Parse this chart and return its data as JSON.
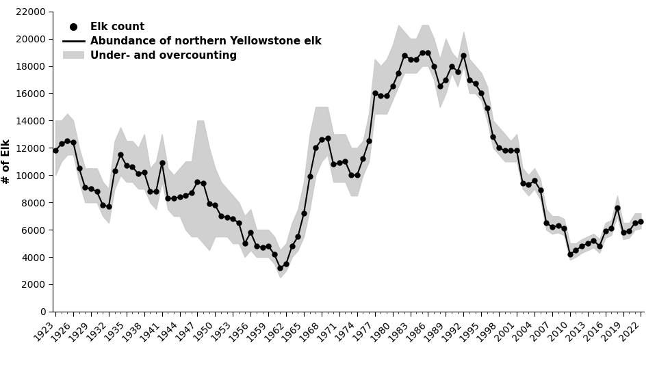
{
  "years": [
    1923,
    1924,
    1925,
    1926,
    1927,
    1928,
    1929,
    1930,
    1931,
    1932,
    1933,
    1934,
    1935,
    1936,
    1937,
    1938,
    1939,
    1940,
    1941,
    1942,
    1943,
    1944,
    1945,
    1946,
    1947,
    1948,
    1949,
    1950,
    1951,
    1952,
    1953,
    1954,
    1955,
    1956,
    1957,
    1958,
    1959,
    1960,
    1961,
    1962,
    1963,
    1964,
    1965,
    1966,
    1967,
    1968,
    1969,
    1970,
    1971,
    1972,
    1973,
    1974,
    1975,
    1976,
    1977,
    1978,
    1979,
    1980,
    1981,
    1982,
    1983,
    1984,
    1985,
    1986,
    1987,
    1988,
    1989,
    1990,
    1991,
    1992,
    1993,
    1994,
    1995,
    1996,
    1997,
    1998,
    1999,
    2000,
    2001,
    2002,
    2003,
    2004,
    2005,
    2006,
    2007,
    2008,
    2009,
    2010,
    2011,
    2012,
    2013,
    2014,
    2015,
    2016,
    2017,
    2018,
    2019,
    2020,
    2021,
    2022
  ],
  "values": [
    11800,
    12300,
    12500,
    12400,
    10500,
    9100,
    9000,
    8800,
    7800,
    7700,
    10300,
    11500,
    10700,
    10600,
    10100,
    10200,
    8800,
    8800,
    10900,
    8300,
    8300,
    8400,
    8500,
    8700,
    9500,
    9400,
    7900,
    7800,
    7000,
    6900,
    6800,
    6500,
    5000,
    5800,
    4800,
    4700,
    4800,
    4200,
    3200,
    3500,
    4800,
    5500,
    7200,
    9900,
    12000,
    12600,
    12700,
    10800,
    10900,
    11000,
    10000,
    10000,
    11200,
    12500,
    16000,
    15800,
    15800,
    16500,
    17500,
    18800,
    18500,
    18500,
    19000,
    19000,
    18000,
    16500,
    17000,
    18000,
    17600,
    18800,
    17000,
    16700,
    16000,
    14900,
    12800,
    12000,
    11800,
    11800,
    11800,
    9400,
    9300,
    9600,
    8900,
    6500,
    6200,
    6300,
    6100,
    4200,
    4500,
    4800,
    5000,
    5200,
    4800,
    5900,
    6100,
    7600,
    5800,
    5900,
    6500,
    6600
  ],
  "lower": [
    10000,
    11000,
    11500,
    11500,
    9500,
    8000,
    8000,
    8000,
    7000,
    6500,
    9000,
    10000,
    9500,
    9500,
    9000,
    9000,
    8000,
    7500,
    9500,
    7500,
    7000,
    7000,
    6000,
    5500,
    5500,
    5000,
    4500,
    5500,
    5500,
    5500,
    5000,
    5000,
    4000,
    4500,
    4000,
    4000,
    4000,
    3500,
    2500,
    3000,
    4000,
    4500,
    5500,
    7500,
    10000,
    11000,
    11500,
    9500,
    9500,
    9500,
    8500,
    8500,
    10000,
    11000,
    14500,
    14500,
    14500,
    15500,
    16500,
    17500,
    17500,
    17500,
    18000,
    18000,
    17000,
    15000,
    16000,
    17500,
    16500,
    18000,
    16000,
    16000,
    15500,
    14000,
    12000,
    11500,
    11000,
    11000,
    11000,
    9000,
    8500,
    9000,
    8200,
    6000,
    5700,
    5800,
    5600,
    3800,
    4000,
    4300,
    4500,
    4700,
    4300,
    5400,
    5600,
    7000,
    5300,
    5400,
    6000,
    6100
  ],
  "upper": [
    14000,
    14000,
    14500,
    14000,
    12000,
    10500,
    10500,
    10500,
    9500,
    9000,
    12500,
    13500,
    12500,
    12500,
    12000,
    13000,
    10500,
    11000,
    13000,
    10500,
    10000,
    10500,
    11000,
    11000,
    14000,
    14000,
    12000,
    10500,
    9500,
    9000,
    8500,
    8000,
    7000,
    7500,
    6000,
    6000,
    6000,
    5500,
    4500,
    5000,
    6500,
    7500,
    9500,
    13000,
    15000,
    15000,
    15000,
    13000,
    13000,
    13000,
    12000,
    12000,
    12500,
    14500,
    18500,
    18000,
    18500,
    19500,
    21000,
    20500,
    20000,
    20000,
    21000,
    21000,
    20000,
    18500,
    20000,
    19000,
    18500,
    20500,
    18500,
    18000,
    17500,
    16500,
    14000,
    13500,
    13000,
    12500,
    13000,
    10500,
    10000,
    10500,
    9700,
    7500,
    7000,
    7000,
    6800,
    5000,
    5000,
    5300,
    5500,
    5700,
    5300,
    6500,
    6700,
    8500,
    6500,
    6500,
    7200,
    7200
  ],
  "line_color": "#000000",
  "dot_color": "#000000",
  "band_color": "#c8c8c8",
  "band_alpha": 0.85,
  "ylabel": "# of Elk",
  "ylim": [
    0,
    22000
  ],
  "yticks": [
    0,
    2000,
    4000,
    6000,
    8000,
    10000,
    12000,
    14000,
    16000,
    18000,
    20000,
    22000
  ],
  "legend_labels": [
    "Elk count",
    "Abundance of northern Yellowstone elk",
    "Under- and overcounting"
  ],
  "background_color": "#ffffff",
  "font_size": 11,
  "linewidth": 1.5,
  "markersize": 5
}
